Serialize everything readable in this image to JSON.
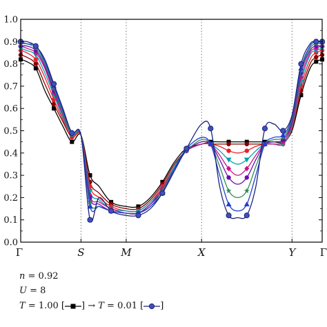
{
  "chart_data": {
    "type": "line",
    "ylim": [
      0.0,
      1.0
    ],
    "yticks": [
      "0.0",
      "0.1",
      "0.2",
      "0.3",
      "0.4",
      "0.5",
      "0.6",
      "0.7",
      "0.8",
      "0.9",
      "1.0"
    ],
    "k_labels": [
      "Γ",
      "S",
      "M",
      "X",
      "Y",
      "Γ"
    ],
    "k_positions": [
      0,
      0.2,
      0.35,
      0.6,
      0.9,
      1.0
    ],
    "vlines": [
      0.2,
      0.35,
      0.6,
      0.9
    ],
    "x_sample": [
      0,
      0.02,
      0.05,
      0.08,
      0.11,
      0.14,
      0.17,
      0.2,
      0.23,
      0.26,
      0.3,
      0.35,
      0.39,
      0.43,
      0.47,
      0.51,
      0.55,
      0.6,
      0.63,
      0.66,
      0.69,
      0.72,
      0.75,
      0.78,
      0.81,
      0.84,
      0.87,
      0.9,
      0.93,
      0.96,
      0.98,
      1.0
    ],
    "series": [
      {
        "color": "#000000",
        "marker": "square",
        "values": [
          0.82,
          0.81,
          0.78,
          0.68,
          0.6,
          0.52,
          0.45,
          0.48,
          0.3,
          0.25,
          0.18,
          0.16,
          0.16,
          0.2,
          0.27,
          0.36,
          0.42,
          0.44,
          0.45,
          0.45,
          0.45,
          0.45,
          0.45,
          0.45,
          0.45,
          0.45,
          0.45,
          0.5,
          0.66,
          0.78,
          0.81,
          0.82
        ]
      },
      {
        "color": "#8B0000",
        "marker": "circle",
        "values": [
          0.84,
          0.83,
          0.8,
          0.71,
          0.62,
          0.54,
          0.47,
          0.48,
          0.27,
          0.22,
          0.17,
          0.15,
          0.15,
          0.19,
          0.26,
          0.35,
          0.41,
          0.44,
          0.44,
          0.44,
          0.44,
          0.44,
          0.44,
          0.44,
          0.44,
          0.44,
          0.44,
          0.51,
          0.68,
          0.8,
          0.83,
          0.84
        ]
      },
      {
        "color": "#e8232a",
        "marker": "circle",
        "values": [
          0.86,
          0.85,
          0.82,
          0.74,
          0.64,
          0.55,
          0.47,
          0.48,
          0.25,
          0.2,
          0.16,
          0.14,
          0.14,
          0.18,
          0.25,
          0.34,
          0.41,
          0.44,
          0.44,
          0.43,
          0.41,
          0.4,
          0.41,
          0.43,
          0.44,
          0.44,
          0.44,
          0.51,
          0.7,
          0.82,
          0.85,
          0.86
        ]
      },
      {
        "color": "#00a0b0",
        "marker": "triangle-down",
        "values": [
          0.87,
          0.86,
          0.84,
          0.76,
          0.66,
          0.56,
          0.48,
          0.48,
          0.23,
          0.19,
          0.15,
          0.14,
          0.14,
          0.18,
          0.24,
          0.34,
          0.41,
          0.44,
          0.44,
          0.41,
          0.37,
          0.35,
          0.37,
          0.41,
          0.44,
          0.44,
          0.44,
          0.52,
          0.72,
          0.84,
          0.86,
          0.87
        ]
      },
      {
        "color": "#c71585",
        "marker": "diamond",
        "values": [
          0.88,
          0.87,
          0.85,
          0.78,
          0.67,
          0.57,
          0.48,
          0.48,
          0.21,
          0.18,
          0.15,
          0.13,
          0.13,
          0.17,
          0.24,
          0.33,
          0.41,
          0.44,
          0.44,
          0.39,
          0.33,
          0.3,
          0.33,
          0.39,
          0.44,
          0.44,
          0.45,
          0.53,
          0.74,
          0.85,
          0.87,
          0.88
        ]
      },
      {
        "color": "#6a0dad",
        "marker": "circle",
        "values": [
          0.88,
          0.88,
          0.86,
          0.79,
          0.68,
          0.58,
          0.48,
          0.48,
          0.2,
          0.17,
          0.14,
          0.13,
          0.13,
          0.17,
          0.23,
          0.33,
          0.41,
          0.45,
          0.44,
          0.37,
          0.29,
          0.26,
          0.29,
          0.37,
          0.44,
          0.45,
          0.46,
          0.54,
          0.76,
          0.86,
          0.88,
          0.88
        ]
      },
      {
        "color": "#2e8b57",
        "marker": "star",
        "values": [
          0.89,
          0.89,
          0.87,
          0.8,
          0.69,
          0.58,
          0.48,
          0.48,
          0.18,
          0.16,
          0.14,
          0.13,
          0.13,
          0.16,
          0.23,
          0.33,
          0.41,
          0.46,
          0.44,
          0.34,
          0.23,
          0.2,
          0.23,
          0.34,
          0.44,
          0.46,
          0.47,
          0.55,
          0.77,
          0.87,
          0.89,
          0.89
        ]
      },
      {
        "color": "#1f3fd0",
        "marker": "triangle-up",
        "values": [
          0.9,
          0.89,
          0.88,
          0.81,
          0.7,
          0.59,
          0.49,
          0.48,
          0.16,
          0.16,
          0.14,
          0.13,
          0.13,
          0.16,
          0.22,
          0.33,
          0.42,
          0.47,
          0.44,
          0.3,
          0.17,
          0.14,
          0.17,
          0.3,
          0.44,
          0.47,
          0.48,
          0.56,
          0.78,
          0.88,
          0.9,
          0.9
        ]
      },
      {
        "color": "#1a237e",
        "marker": "circle-open",
        "values": [
          0.9,
          0.9,
          0.88,
          0.82,
          0.71,
          0.6,
          0.49,
          0.48,
          0.1,
          0.2,
          0.14,
          0.12,
          0.12,
          0.15,
          0.22,
          0.32,
          0.42,
          0.53,
          0.51,
          0.25,
          0.12,
          0.11,
          0.12,
          0.25,
          0.51,
          0.53,
          0.5,
          0.57,
          0.8,
          0.89,
          0.9,
          0.9
        ]
      }
    ]
  },
  "legend": {
    "n_label": "n",
    "n_value": "= 0.92",
    "u_label": "U",
    "u_value": "= 8",
    "t_label": "T",
    "t_first": "= 1.00 [",
    "t_mid": "] → ",
    "t_label2": "T",
    "t_second": "= 0.01 [",
    "t_end": "]"
  }
}
